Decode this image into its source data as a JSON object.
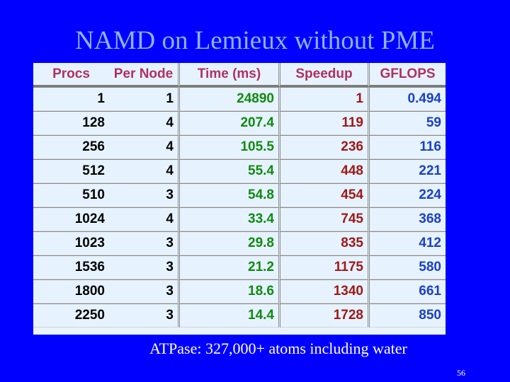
{
  "title": "NAMD on Lemieux without PME",
  "table": {
    "headers": [
      "Procs",
      "Per Node",
      "Time (ms)",
      "Speedup",
      "GFLOPS"
    ],
    "rows": [
      [
        "1",
        "1",
        "24890",
        "1",
        "0.494"
      ],
      [
        "128",
        "4",
        "207.4",
        "119",
        "59"
      ],
      [
        "256",
        "4",
        "105.5",
        "236",
        "116"
      ],
      [
        "512",
        "4",
        "55.4",
        "448",
        "221"
      ],
      [
        "510",
        "3",
        "54.8",
        "454",
        "224"
      ],
      [
        "1024",
        "4",
        "33.4",
        "745",
        "368"
      ],
      [
        "1023",
        "3",
        "29.8",
        "835",
        "412"
      ],
      [
        "1536",
        "3",
        "21.2",
        "1175",
        "580"
      ],
      [
        "1800",
        "3",
        "18.6",
        "1340",
        "661"
      ],
      [
        "2250",
        "3",
        "14.4",
        "1728",
        "850"
      ]
    ]
  },
  "caption": "ATPase: 327,000+ atoms including water",
  "page_number": "56",
  "colors": {
    "background": "#0000ff",
    "title": "#8fb3ff",
    "table_background": "#e6f3ff",
    "header_text": "#b03060",
    "time_column": "#118a11",
    "speedup_column": "#a01818",
    "gflops_column": "#1a3fc8"
  }
}
